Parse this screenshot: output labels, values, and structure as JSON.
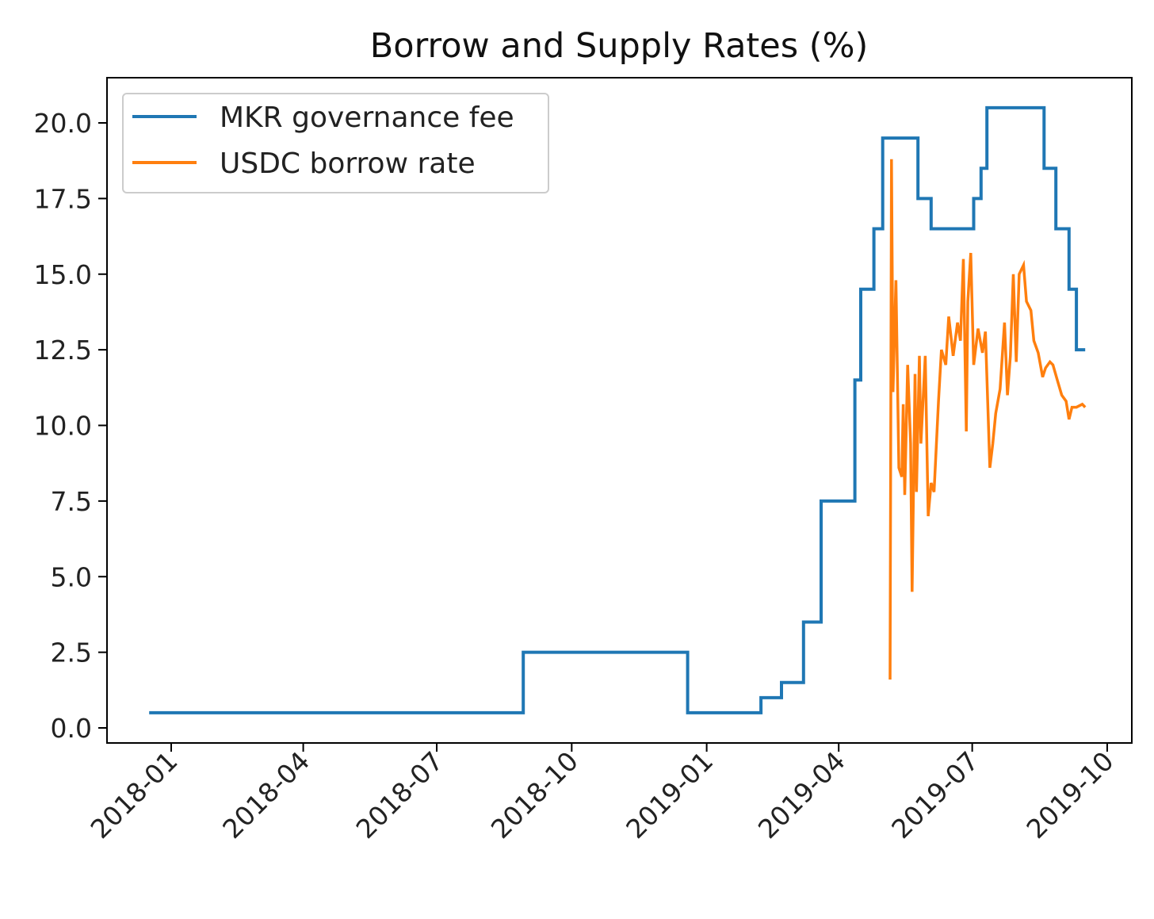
{
  "chart_data": {
    "type": "line",
    "title": "Borrow and Supply Rates (%)",
    "xlabel": "",
    "ylabel": "",
    "ylim": [
      -1.0,
      21.5
    ],
    "xlim": [
      "2017-11-28",
      "2019-10-05"
    ],
    "grid": false,
    "legend_position": "top-left",
    "colors": {
      "MKR governance fee": "#1f77b4",
      "USDC borrow rate": "#ff7f0e"
    },
    "y_ticks": [
      "0.0",
      "2.5",
      "5.0",
      "7.5",
      "10.0",
      "12.5",
      "15.0",
      "17.5",
      "20.0"
    ],
    "y_tick_values": [
      0,
      2.5,
      5,
      7.5,
      10,
      12.5,
      15,
      17.5,
      20
    ],
    "x_ticks": [
      "2018-01",
      "2018-04",
      "2018-07",
      "2018-10",
      "2019-01",
      "2019-04",
      "2019-07",
      "2019-10"
    ],
    "series": [
      {
        "name": "MKR governance fee",
        "step": true,
        "points": [
          [
            "2017-12-17",
            0.5
          ],
          [
            "2018-08-29",
            2.5
          ],
          [
            "2018-12-19",
            0.5
          ],
          [
            "2019-02-07",
            1.0
          ],
          [
            "2019-02-21",
            1.5
          ],
          [
            "2019-03-08",
            3.5
          ],
          [
            "2019-03-20",
            7.5
          ],
          [
            "2019-04-12",
            11.5
          ],
          [
            "2019-04-16",
            14.5
          ],
          [
            "2019-04-25",
            16.5
          ],
          [
            "2019-05-01",
            19.5
          ],
          [
            "2019-05-25",
            17.5
          ],
          [
            "2019-06-03",
            16.5
          ],
          [
            "2019-07-02",
            17.5
          ],
          [
            "2019-07-07",
            18.5
          ],
          [
            "2019-07-11",
            20.5
          ],
          [
            "2019-08-19",
            18.5
          ],
          [
            "2019-08-27",
            16.5
          ],
          [
            "2019-09-05",
            14.5
          ],
          [
            "2019-09-10",
            12.5
          ],
          [
            "2019-09-16",
            12.5
          ]
        ]
      },
      {
        "name": "USDC borrow rate",
        "step": false,
        "points": [
          [
            "2019-05-06",
            1.6
          ],
          [
            "2019-05-07",
            18.8
          ],
          [
            "2019-05-08",
            11.1
          ],
          [
            "2019-05-10",
            14.8
          ],
          [
            "2019-05-12",
            8.6
          ],
          [
            "2019-05-14",
            8.3
          ],
          [
            "2019-05-15",
            10.7
          ],
          [
            "2019-05-16",
            7.7
          ],
          [
            "2019-05-18",
            12.0
          ],
          [
            "2019-05-20",
            9.4
          ],
          [
            "2019-05-21",
            4.5
          ],
          [
            "2019-05-23",
            11.7
          ],
          [
            "2019-05-24",
            7.8
          ],
          [
            "2019-05-26",
            12.3
          ],
          [
            "2019-05-27",
            9.4
          ],
          [
            "2019-05-30",
            12.3
          ],
          [
            "2019-06-01",
            7.0
          ],
          [
            "2019-06-03",
            8.1
          ],
          [
            "2019-06-05",
            7.8
          ],
          [
            "2019-06-08",
            10.8
          ],
          [
            "2019-06-10",
            12.5
          ],
          [
            "2019-06-13",
            12.0
          ],
          [
            "2019-06-15",
            13.6
          ],
          [
            "2019-06-18",
            12.3
          ],
          [
            "2019-06-21",
            13.4
          ],
          [
            "2019-06-23",
            12.8
          ],
          [
            "2019-06-25",
            15.5
          ],
          [
            "2019-06-27",
            9.8
          ],
          [
            "2019-06-28",
            14.1
          ],
          [
            "2019-06-30",
            15.7
          ],
          [
            "2019-07-02",
            12.0
          ],
          [
            "2019-07-05",
            13.2
          ],
          [
            "2019-07-08",
            12.4
          ],
          [
            "2019-07-10",
            13.1
          ],
          [
            "2019-07-13",
            8.6
          ],
          [
            "2019-07-15",
            9.4
          ],
          [
            "2019-07-17",
            10.4
          ],
          [
            "2019-07-20",
            11.2
          ],
          [
            "2019-07-23",
            13.4
          ],
          [
            "2019-07-25",
            11.0
          ],
          [
            "2019-07-27",
            12.3
          ],
          [
            "2019-07-29",
            15.0
          ],
          [
            "2019-07-31",
            12.1
          ],
          [
            "2019-08-02",
            15.0
          ],
          [
            "2019-08-05",
            15.3
          ],
          [
            "2019-08-07",
            14.1
          ],
          [
            "2019-08-10",
            13.8
          ],
          [
            "2019-08-12",
            12.8
          ],
          [
            "2019-08-15",
            12.4
          ],
          [
            "2019-08-18",
            11.6
          ],
          [
            "2019-08-20",
            11.9
          ],
          [
            "2019-08-23",
            12.1
          ],
          [
            "2019-08-25",
            12.0
          ],
          [
            "2019-08-28",
            11.5
          ],
          [
            "2019-08-31",
            11.0
          ],
          [
            "2019-09-03",
            10.8
          ],
          [
            "2019-09-05",
            10.2
          ],
          [
            "2019-09-07",
            10.6
          ],
          [
            "2019-09-10",
            10.6
          ],
          [
            "2019-09-14",
            10.7
          ],
          [
            "2019-09-16",
            10.6
          ]
        ]
      }
    ]
  }
}
